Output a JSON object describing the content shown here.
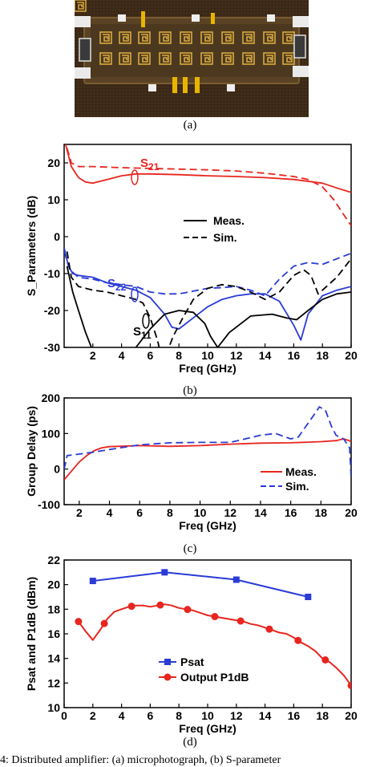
{
  "captions": {
    "a": "(a)",
    "b": "(b)",
    "c": "(c)",
    "d": "(d)",
    "figure": "4: Distributed amplifier: (a) microphotograph, (b) S-parameter"
  },
  "photo": {
    "description_icon": "chip-microphotograph-icon"
  },
  "chart_data": [
    {
      "panel": "b",
      "type": "line",
      "xlabel": "Freq (GHz)",
      "ylabel": "S_Parameters (dB)",
      "xlim": [
        0,
        20
      ],
      "ylim": [
        -30,
        25
      ],
      "xticks": [
        2,
        4,
        6,
        8,
        10,
        12,
        14,
        16,
        18,
        20
      ],
      "yticks": [
        -30,
        -20,
        -10,
        0,
        10,
        20
      ],
      "legend": {
        "placement": "center-right",
        "entries": [
          "Meas.",
          "Sim."
        ]
      },
      "annotations": [
        {
          "text": "S",
          "sub": "21",
          "x": 5.5,
          "y": 19.5,
          "color": "#e8251f"
        },
        {
          "text": "S",
          "sub": "22",
          "x": 4.0,
          "y": -12.5,
          "color": "#2a3bd6"
        },
        {
          "text": "S",
          "sub": "11",
          "x": 4.3,
          "y": -27.5,
          "color": "#000000"
        }
      ],
      "colors": {
        "s21": "#e8251f",
        "s22": "#2a3bd6",
        "s11": "#000000"
      },
      "series": [
        {
          "name": "S21 Meas.",
          "color": "#e8251f",
          "dash": false,
          "x": [
            0.1,
            0.5,
            1,
            1.5,
            2,
            3,
            4,
            5,
            6,
            8,
            10,
            12,
            14,
            16,
            18,
            19,
            20
          ],
          "y": [
            25,
            19,
            16,
            14.8,
            14.5,
            15.5,
            16.5,
            17,
            17,
            16.8,
            16.5,
            16.3,
            16,
            15.5,
            14.5,
            13.2,
            12
          ]
        },
        {
          "name": "S21 Sim.",
          "color": "#e8251f",
          "dash": true,
          "x": [
            0.2,
            0.5,
            1,
            2,
            4,
            6,
            8,
            10,
            12,
            14,
            16,
            17,
            18,
            18.8,
            19.3,
            20
          ],
          "y": [
            24,
            20,
            19,
            19,
            18.7,
            18.5,
            18.3,
            18.1,
            17.8,
            17.2,
            16.3,
            15.5,
            13.5,
            10,
            7,
            3
          ]
        },
        {
          "name": "S22 Meas.",
          "color": "#2a3bd6",
          "dash": false,
          "x": [
            0,
            0.3,
            0.6,
            1,
            2,
            3,
            4,
            5,
            6,
            7,
            7.5,
            8,
            9,
            10,
            11,
            12,
            13,
            14,
            15,
            16,
            16.5,
            17,
            18,
            19,
            20
          ],
          "y": [
            -3,
            -8,
            -10,
            -10.5,
            -11,
            -12.5,
            -13.5,
            -14.5,
            -16.5,
            -21,
            -24.5,
            -25,
            -22,
            -19,
            -17,
            -16,
            -15.5,
            -15.5,
            -17.5,
            -24,
            -28,
            -21,
            -16,
            -14.5,
            -13.5
          ]
        },
        {
          "name": "S22 Sim.",
          "color": "#2a3bd6",
          "dash": true,
          "x": [
            0,
            0.4,
            1,
            2,
            3,
            4,
            5,
            6,
            7,
            8,
            10,
            11,
            12,
            13,
            14,
            15,
            16,
            17,
            18,
            19,
            20
          ],
          "y": [
            -4,
            -9,
            -11,
            -11.5,
            -12.5,
            -13,
            -13.5,
            -15,
            -15.5,
            -15.5,
            -14,
            -13.8,
            -13.5,
            -14.5,
            -16,
            -11.5,
            -8,
            -7,
            -7.5,
            -6,
            -4.5
          ]
        },
        {
          "name": "S11 Meas.",
          "color": "#000000",
          "dash": false,
          "x": [
            0.2,
            0.6,
            1,
            1.5,
            1.9,
            2.3,
            3,
            4,
            5,
            6,
            7,
            8,
            9,
            9.8,
            10.2,
            10.7,
            11.5,
            13,
            14.5,
            15.5,
            16.2,
            17,
            18,
            19,
            20
          ],
          "y": [
            -8,
            -15,
            -20,
            -26,
            -30,
            -34,
            -36,
            -34,
            -30,
            -25,
            -21,
            -20,
            -20.5,
            -23.5,
            -27,
            -30,
            -26,
            -21.5,
            -21,
            -22,
            -22.5,
            -20,
            -17,
            -15.5,
            -15
          ]
        },
        {
          "name": "S11 Sim.",
          "color": "#000000",
          "dash": true,
          "x": [
            0.2,
            0.5,
            1,
            2,
            3,
            4,
            5,
            5.5,
            6,
            6.5,
            6.8,
            7.2,
            7.6,
            8.2,
            9,
            10,
            11,
            12,
            13,
            14,
            15,
            16,
            16.7,
            17.2,
            17.7,
            18,
            19,
            20
          ],
          "y": [
            -4,
            -11,
            -13.5,
            -14.5,
            -15,
            -16,
            -17,
            -18,
            -22,
            -28,
            -33,
            -31,
            -27,
            -22.5,
            -17,
            -14,
            -13,
            -13.5,
            -15,
            -17,
            -15,
            -10.5,
            -9,
            -10.5,
            -15.5,
            -14.5,
            -11,
            -6
          ]
        }
      ]
    },
    {
      "panel": "c",
      "type": "line",
      "xlabel": "Freq (GHz)",
      "ylabel": "Group Delay (ps)",
      "xlim": [
        1,
        20
      ],
      "ylim": [
        -100,
        200
      ],
      "xticks": [
        2,
        4,
        6,
        8,
        10,
        12,
        14,
        16,
        18,
        20
      ],
      "yticks": [
        -100,
        0,
        100,
        200
      ],
      "legend": {
        "placement": "bottom-right",
        "entries": [
          "Meas.",
          "Sim."
        ]
      },
      "series": [
        {
          "name": "Meas.",
          "color": "#e8251f",
          "dash": false,
          "x": [
            1,
            1.5,
            2,
            2.5,
            3,
            3.5,
            4,
            6,
            8,
            10,
            12,
            14,
            16,
            18,
            19,
            19.5,
            20
          ],
          "y": [
            -30,
            -5,
            20,
            38,
            52,
            60,
            63,
            66,
            64,
            66,
            70,
            73,
            74,
            77,
            80,
            85,
            78
          ]
        },
        {
          "name": "Sim.",
          "color": "#2a3bd6",
          "dash": true,
          "x": [
            1,
            1.2,
            2,
            3,
            4,
            6,
            8,
            10,
            12,
            13,
            14,
            15,
            16,
            16.5,
            17,
            17.5,
            17.9,
            18.3,
            18.7,
            19,
            19.5,
            19.9,
            20
          ],
          "y": [
            0,
            38,
            42,
            48,
            55,
            68,
            74,
            75,
            75,
            85,
            95,
            100,
            85,
            90,
            120,
            150,
            175,
            165,
            120,
            95,
            85,
            60,
            -25
          ]
        }
      ]
    },
    {
      "panel": "d",
      "type": "line",
      "xlabel": "Freq (GHz)",
      "ylabel": "Psat and P1dB (dBm)",
      "xlim": [
        0,
        20
      ],
      "ylim": [
        10,
        22
      ],
      "xticks": [
        0,
        2,
        4,
        6,
        8,
        10,
        12,
        14,
        16,
        18,
        20
      ],
      "yticks": [
        10,
        12,
        14,
        16,
        18,
        20,
        22
      ],
      "legend": {
        "placement": "bottom-center",
        "entries": [
          "Psat",
          "Output P1dB"
        ]
      },
      "series": [
        {
          "name": "Psat",
          "color": "#2a3bd6",
          "marker": "square",
          "x": [
            2,
            7,
            12,
            17
          ],
          "y": [
            20.3,
            21.0,
            20.4,
            19.0
          ]
        },
        {
          "name": "Output P1dB",
          "color": "#e8251f",
          "marker": "circle",
          "x": [
            1,
            1.5,
            2,
            2.5,
            3,
            3.5,
            4,
            4.5,
            5,
            5.5,
            6,
            6.5,
            7,
            7.5,
            8,
            8.5,
            9,
            9.5,
            10,
            10.5,
            11,
            11.5,
            12,
            12.5,
            13,
            13.5,
            14,
            14.5,
            15,
            15.5,
            16,
            16.5,
            17,
            17.5,
            18,
            18.5,
            19,
            19.5,
            20
          ],
          "y": [
            17.0,
            16.2,
            15.5,
            16.3,
            17.2,
            17.8,
            18.0,
            18.2,
            18.3,
            18.3,
            18.2,
            18.3,
            18.4,
            18.3,
            18.1,
            18.0,
            17.9,
            17.7,
            17.5,
            17.4,
            17.3,
            17.2,
            17.1,
            17.0,
            16.8,
            16.7,
            16.5,
            16.3,
            16.1,
            16.0,
            15.7,
            15.3,
            15.0,
            14.6,
            14.0,
            13.7,
            13.2,
            12.6,
            11.8
          ],
          "marked_x": [
            1,
            2.8,
            4.7,
            6.7,
            8.6,
            10.5,
            12.3,
            14.3,
            16.3,
            18.2,
            20
          ]
        }
      ]
    }
  ]
}
